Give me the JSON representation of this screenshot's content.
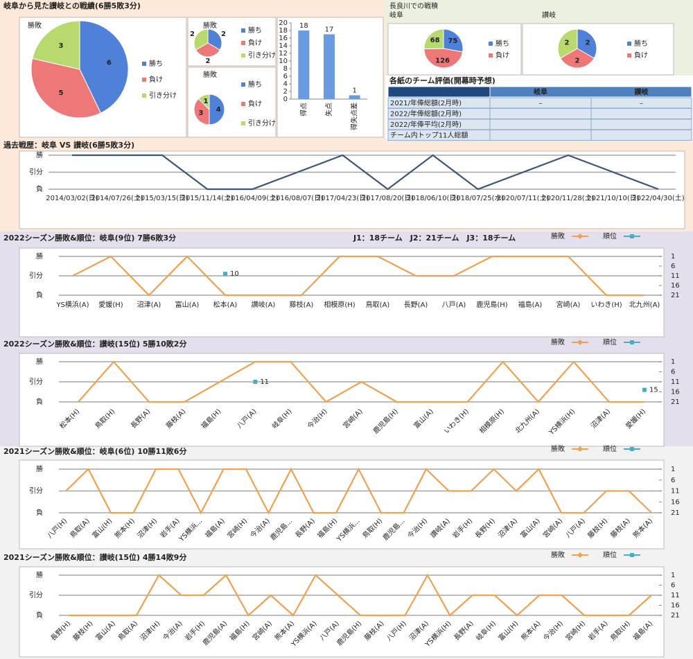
{
  "panels": {
    "head_to_head": "岐阜から見た讃岐との戦績(6勝5敗3分)",
    "home_ground": "長良川での戦積"
  },
  "table": {
    "title": "各紙のチーム評価(開幕時予想)",
    "columns": [
      "岐阜",
      "讃岐"
    ],
    "rows": [
      [
        "2021/年俸総額(2月時)",
        "–",
        "–"
      ],
      [
        "2022/年俸総額(2月時)"
      ],
      [
        "2022/年俸平均(2月時)"
      ],
      [
        "チーム内トップ11人総額"
      ]
    ]
  },
  "chart_data": [
    {
      "type": "pie",
      "title": "勝敗",
      "categories": [
        "勝ち",
        "負け",
        "引き分け"
      ],
      "values": [
        6,
        5,
        3
      ],
      "colors": [
        "#4f81d9",
        "#ee7777",
        "#b8d96e"
      ]
    },
    {
      "type": "pie",
      "title": "勝敗",
      "categories": [
        "勝ち",
        "負け",
        "引き分け"
      ],
      "values": [
        2,
        2,
        2
      ],
      "colors": [
        "#4f81d9",
        "#ee7777",
        "#b8d96e"
      ]
    },
    {
      "type": "pie",
      "title": "勝敗",
      "categories": [
        "勝ち",
        "負け",
        "引き分け"
      ],
      "values": [
        4,
        3,
        1
      ],
      "colors": [
        "#4f81d9",
        "#ee7777",
        "#b8d96e"
      ]
    },
    {
      "type": "bar",
      "categories": [
        "得点",
        "失点",
        "得失点差"
      ],
      "values": [
        18,
        17,
        1
      ],
      "color": "#6a9be0",
      "ylim": [
        0,
        20
      ],
      "yticks": [
        0,
        2,
        4,
        6,
        8,
        10,
        12,
        14,
        16,
        18,
        20
      ]
    },
    {
      "type": "pie",
      "title": "岐阜",
      "categories": [
        "勝ち",
        "負け",
        null
      ],
      "values": [
        75,
        126,
        68
      ],
      "colors": [
        "#4f81d9",
        "#ee7777",
        "#b8d96e"
      ]
    },
    {
      "type": "pie",
      "title": "讃岐",
      "categories": [
        "勝ち",
        "負け",
        null
      ],
      "values": [
        2,
        2,
        2
      ],
      "colors": [
        "#4f81d9",
        "#ee7777",
        "#b8d96e"
      ]
    },
    {
      "type": "line",
      "title": "過去戦歴：岐阜 VS 讃岐(6勝5敗3分)",
      "categories": [
        "2014/03/02(日)",
        "2014/07/26(土)",
        "2015/03/15(日)",
        "2015/11/14(土)",
        "2016/04/09(土)",
        "2016/08/07(日)",
        "2017/04/23(日)",
        "2017/08/20(日)",
        "2018/06/10(日)",
        "2018/07/25(水)",
        "2020/07/11(土)",
        "2020/11/28(土)",
        "2021/10/10(日)",
        "2022/04/30(土)"
      ],
      "values": [
        1,
        1,
        1,
        -1,
        -1,
        0,
        1,
        -1,
        1,
        -1,
        0,
        1,
        0,
        -1
      ],
      "color": "#3b5578",
      "ylim": [
        -1,
        1
      ],
      "yticks": [
        {
          "value": 1,
          "label": "勝"
        },
        {
          "value": 0,
          "label": "引分"
        },
        {
          "value": -1,
          "label": "負"
        }
      ]
    },
    {
      "type": "line",
      "title": "2022シーズン勝敗&順位：岐阜(9位) 7勝6敗3分",
      "annotation": "J1：18チーム　J2：21チーム　J3：18チーム",
      "categories": [
        "YS横浜(A)",
        "愛媛(H)",
        "沼津(A)",
        "富山(A)",
        "松本(A)",
        "讃岐(A)",
        "藤枝(A)",
        "相模原(H)",
        "鳥取(A)",
        "長野(A)",
        "八戸(A)",
        "鹿児島(H)",
        "福島(A)",
        "宮崎(A)",
        "いわき(H)",
        "北九州(A)"
      ],
      "series": [
        {
          "name": "勝敗",
          "color": "#f0a050",
          "values": [
            0,
            1,
            -1,
            1,
            -1,
            -1,
            -1,
            1,
            1,
            0,
            0,
            1,
            1,
            1,
            -1,
            -1
          ]
        },
        {
          "name": "順位",
          "color": "#4bacc6",
          "axis": "y2",
          "values": [
            null,
            null,
            null,
            null,
            10,
            null,
            null,
            null,
            null,
            null,
            null,
            null,
            null,
            null,
            null,
            null
          ]
        }
      ],
      "ylim": [
        -1,
        1
      ],
      "yticks": [
        {
          "value": 1,
          "label": "勝"
        },
        {
          "value": 0,
          "label": "引分"
        },
        {
          "value": -1,
          "label": "負"
        }
      ],
      "y2lim": [
        21,
        1
      ],
      "y2ticks": [
        1,
        6,
        11,
        16,
        21
      ]
    },
    {
      "type": "line",
      "title": "2022シーズン勝敗&順位：讃岐(15位) 5勝10敗2分",
      "categories": [
        "松本(H)",
        "鳥取(H)",
        "長野(A)",
        "藤枝(A)",
        "福島(H)",
        "八戸(A)",
        "岐阜(H)",
        "今治(H)",
        "宮崎(A)",
        "鹿児島(H)",
        "富山(A)",
        "いわき(H)",
        "相模原(H)",
        "北九州(A)",
        "YS横浜(H)",
        "沼津(A)",
        "愛媛(H)"
      ],
      "series": [
        {
          "name": "勝敗",
          "color": "#f0a050",
          "values": [
            -1,
            1,
            -1,
            -1,
            0,
            1,
            1,
            -1,
            0,
            -1,
            -1,
            -1,
            1,
            -1,
            1,
            -1,
            -1
          ]
        },
        {
          "name": "順位",
          "color": "#4bacc6",
          "axis": "y2",
          "values": [
            null,
            null,
            null,
            null,
            null,
            11,
            null,
            null,
            null,
            null,
            null,
            null,
            null,
            null,
            null,
            null,
            15
          ]
        }
      ],
      "ylim": [
        -1,
        1
      ],
      "yticks": [
        {
          "value": 1,
          "label": "勝"
        },
        {
          "value": 0,
          "label": "引分"
        },
        {
          "value": -1,
          "label": "負"
        }
      ],
      "y2lim": [
        21,
        1
      ],
      "y2ticks": [
        1,
        6,
        11,
        16,
        21
      ]
    },
    {
      "type": "line",
      "title": "2021シーズン勝敗&順位：岐阜(6位) 10勝11敗6分",
      "categories": [
        "八戸(H)",
        "鳥取(A)",
        "富山(H)",
        "熊本(H)",
        "沼津(H)",
        "岩手(A)",
        "YS横浜...",
        "福島(A)",
        "宮崎(H)",
        "今治(A)",
        "鹿児島...",
        "長野(A)",
        "福島(H)",
        "YS横浜...",
        "鳥取(H)",
        "鹿児島...",
        "今治(H)",
        "讃岐(A)",
        "岩手(H)",
        "長野(H)",
        "沼津(A)",
        "富山(A)",
        "宮崎(A)",
        "八戸(A)",
        "藤枝(H)",
        "藤枝(A)",
        "熊本(A)"
      ],
      "series": [
        {
          "name": "勝敗",
          "color": "#f0a050",
          "values": [
            0,
            1,
            -1,
            -1,
            1,
            1,
            -1,
            1,
            1,
            -1,
            1,
            -1,
            -1,
            1,
            -1,
            -1,
            1,
            0,
            0,
            1,
            0,
            1,
            -1,
            -1,
            0,
            0,
            -1
          ]
        },
        {
          "name": "順位",
          "color": "#4bacc6",
          "axis": "y2",
          "values": [
            null,
            null,
            null,
            null,
            null,
            null,
            null,
            null,
            null,
            null,
            null,
            null,
            null,
            null,
            null,
            null,
            null,
            null,
            null,
            null,
            null,
            null,
            null,
            null,
            null,
            null,
            null
          ]
        }
      ],
      "ylim": [
        -1,
        1
      ],
      "yticks": [
        {
          "value": 1,
          "label": "勝"
        },
        {
          "value": 0,
          "label": "引分"
        },
        {
          "value": -1,
          "label": "負"
        }
      ],
      "y2lim": [
        21,
        1
      ],
      "y2ticks": [
        1,
        6,
        11,
        16,
        21
      ]
    },
    {
      "type": "line",
      "title": "2021シーズン勝敗&順位：讃岐(15位) 4勝14敗9分",
      "categories": [
        "長野(H)",
        "藤枝(H)",
        "富山(A)",
        "鳥取(A)",
        "沼津(H)",
        "今治(A)",
        "岩手(H)",
        "鹿児島(A)",
        "福島(H)",
        "宮崎(A)",
        "熊本(A)",
        "YS横浜(A)",
        "八戸(A)",
        "鹿児島(H)",
        "藤枝(A)",
        "八戸(H)",
        "沼津(A)",
        "YS横浜(H)",
        "長野(A)",
        "岐阜(H)",
        "富山(H)",
        "熊本(A)",
        "今治(H)",
        "宮崎(H)",
        "岩手(A)",
        "鳥取(H)",
        "福島(A)"
      ],
      "series": [
        {
          "name": "勝敗",
          "color": "#f0a050",
          "values": [
            -1,
            -1,
            -1,
            -1,
            1,
            0,
            0,
            1,
            -1,
            0,
            -1,
            1,
            0,
            -1,
            -1,
            -1,
            1,
            -1,
            0,
            0,
            -1,
            0,
            0,
            -1,
            -1,
            -1,
            0
          ]
        },
        {
          "name": "順位",
          "color": "#4bacc6",
          "axis": "y2",
          "values": [
            null,
            null,
            null,
            null,
            null,
            null,
            null,
            null,
            null,
            null,
            null,
            null,
            null,
            null,
            null,
            null,
            null,
            null,
            null,
            null,
            null,
            null,
            null,
            null,
            null,
            null,
            null
          ]
        }
      ],
      "ylim": [
        -1,
        1
      ],
      "yticks": [
        {
          "value": 1,
          "label": "勝"
        },
        {
          "value": 0,
          "label": "引分"
        },
        {
          "value": -1,
          "label": "負"
        }
      ],
      "y2lim": [
        21,
        1
      ],
      "y2ticks": [
        1,
        6,
        11,
        16,
        21
      ]
    }
  ]
}
